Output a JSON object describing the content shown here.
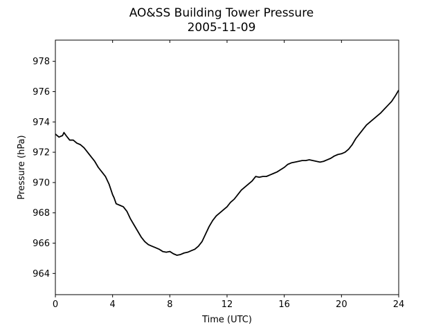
{
  "chart_data": {
    "type": "line",
    "title": "AO&SS Building Tower Pressure",
    "subtitle": "2005-11-09",
    "xlabel": "Time (UTC)",
    "ylabel": "Pressure (hPa)",
    "xlim": [
      0,
      24
    ],
    "ylim": [
      962.6,
      979.4
    ],
    "xticks": [
      0,
      4,
      8,
      12,
      16,
      20,
      24
    ],
    "yticks": [
      964,
      966,
      968,
      970,
      972,
      974,
      976,
      978
    ],
    "grid": false,
    "legend": "none",
    "series": [
      {
        "color": "#000000",
        "x": [
          0,
          0.25,
          0.5,
          0.6,
          0.75,
          1.0,
          1.25,
          1.5,
          1.75,
          2.0,
          2.25,
          2.5,
          2.75,
          3.0,
          3.25,
          3.5,
          3.75,
          4.0,
          4.1,
          4.25,
          4.5,
          4.75,
          5.0,
          5.25,
          5.5,
          5.75,
          6.0,
          6.25,
          6.5,
          6.75,
          7.0,
          7.25,
          7.5,
          7.75,
          8.0,
          8.25,
          8.5,
          8.75,
          9.0,
          9.25,
          9.5,
          9.75,
          10.0,
          10.25,
          10.5,
          10.75,
          11.0,
          11.25,
          11.5,
          11.75,
          12.0,
          12.25,
          12.5,
          12.75,
          13.0,
          13.25,
          13.5,
          13.75,
          14.0,
          14.25,
          14.5,
          14.75,
          15.0,
          15.25,
          15.5,
          15.75,
          16.0,
          16.25,
          16.5,
          16.75,
          17.0,
          17.25,
          17.5,
          17.75,
          18.0,
          18.25,
          18.5,
          18.75,
          19.0,
          19.25,
          19.5,
          19.75,
          20.0,
          20.25,
          20.5,
          20.75,
          21.0,
          21.25,
          21.5,
          21.75,
          22.0,
          22.25,
          22.5,
          22.75,
          23.0,
          23.25,
          23.5,
          23.75,
          24.0
        ],
        "y": [
          973.2,
          973.0,
          973.1,
          973.3,
          973.1,
          972.8,
          972.8,
          972.6,
          972.5,
          972.3,
          972.0,
          971.7,
          971.4,
          971.0,
          970.7,
          970.4,
          969.9,
          969.2,
          969.0,
          968.6,
          968.5,
          968.4,
          968.1,
          967.6,
          967.2,
          966.8,
          966.4,
          966.1,
          965.9,
          965.8,
          965.7,
          965.6,
          965.45,
          965.4,
          965.45,
          965.3,
          965.2,
          965.25,
          965.35,
          965.4,
          965.5,
          965.6,
          965.8,
          966.1,
          966.6,
          967.1,
          967.5,
          967.8,
          968.0,
          968.2,
          968.4,
          968.7,
          968.9,
          969.2,
          969.5,
          969.7,
          969.9,
          970.1,
          970.4,
          970.35,
          970.4,
          970.4,
          970.5,
          970.6,
          970.7,
          970.85,
          971.0,
          971.2,
          971.3,
          971.35,
          971.4,
          971.45,
          971.45,
          971.5,
          971.45,
          971.4,
          971.35,
          971.4,
          971.5,
          971.6,
          971.75,
          971.85,
          971.9,
          972.0,
          972.2,
          972.5,
          972.9,
          973.2,
          973.5,
          973.8,
          974.0,
          974.2,
          974.4,
          974.6,
          974.85,
          975.1,
          975.35,
          975.7,
          976.1
        ]
      }
    ]
  }
}
